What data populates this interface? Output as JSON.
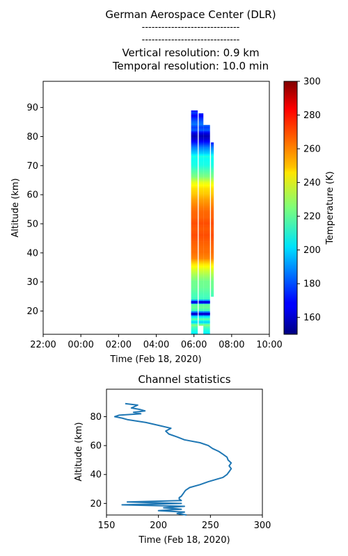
{
  "header": {
    "title": "German Aerospace Center (DLR)",
    "separator1": "------------------------------",
    "separator2": "------------------------------",
    "vertical_resolution": "Vertical resolution: 0.9 km",
    "temporal_resolution": "Temporal resolution: 10.0 min"
  },
  "chart_data": [
    {
      "type": "heatmap",
      "title": "",
      "xlabel": "Time (Feb 18, 2020)",
      "ylabel": "Altitude (km)",
      "x_tick_labels": [
        "22:00",
        "00:00",
        "02:00",
        "04:00",
        "06:00",
        "08:00",
        "10:00"
      ],
      "x_tick_hours": [
        -2,
        0,
        2,
        4,
        6,
        8,
        10
      ],
      "xlim_hours": [
        -2,
        10
      ],
      "ylim": [
        12,
        99
      ],
      "y_ticks": [
        20,
        30,
        40,
        50,
        60,
        70,
        80,
        90
      ],
      "colorbar": {
        "label": "Temperature (K)",
        "range": [
          150,
          300
        ],
        "ticks": [
          160,
          180,
          200,
          220,
          240,
          260,
          280,
          300
        ],
        "colormap": "jet"
      },
      "columns": [
        {
          "start_hour": 5.85,
          "end_hour": 6.2,
          "alt_min": 12,
          "alt_max": 89
        },
        {
          "start_hour": 6.25,
          "end_hour": 6.5,
          "alt_min": 15,
          "alt_max": 88
        },
        {
          "start_hour": 6.5,
          "end_hour": 6.85,
          "alt_min": 12,
          "alt_max": 84
        },
        {
          "start_hour": 6.9,
          "end_hour": 7.05,
          "alt_min": 25,
          "alt_max": 78
        }
      ],
      "temperature_profile": [
        {
          "alt": 12,
          "temp": 205
        },
        {
          "alt": 14,
          "temp": 215
        },
        {
          "alt": 15,
          "temp": 225
        },
        {
          "alt": 16,
          "temp": 200
        },
        {
          "alt": 17,
          "temp": 220
        },
        {
          "alt": 18,
          "temp": 200
        },
        {
          "alt": 19,
          "temp": 160
        },
        {
          "alt": 20,
          "temp": 215
        },
        {
          "alt": 21,
          "temp": 222
        },
        {
          "alt": 22,
          "temp": 220
        },
        {
          "alt": 23,
          "temp": 170
        },
        {
          "alt": 24,
          "temp": 215
        },
        {
          "alt": 26,
          "temp": 218
        },
        {
          "alt": 28,
          "temp": 222
        },
        {
          "alt": 30,
          "temp": 223
        },
        {
          "alt": 32,
          "temp": 230
        },
        {
          "alt": 34,
          "temp": 238
        },
        {
          "alt": 36,
          "temp": 248
        },
        {
          "alt": 38,
          "temp": 262
        },
        {
          "alt": 40,
          "temp": 265
        },
        {
          "alt": 42,
          "temp": 266
        },
        {
          "alt": 44,
          "temp": 268
        },
        {
          "alt": 46,
          "temp": 270
        },
        {
          "alt": 48,
          "temp": 268
        },
        {
          "alt": 50,
          "temp": 270
        },
        {
          "alt": 52,
          "temp": 267
        },
        {
          "alt": 54,
          "temp": 266
        },
        {
          "alt": 56,
          "temp": 262
        },
        {
          "alt": 58,
          "temp": 258
        },
        {
          "alt": 60,
          "temp": 252
        },
        {
          "alt": 62,
          "temp": 248
        },
        {
          "alt": 64,
          "temp": 240
        },
        {
          "alt": 66,
          "temp": 225
        },
        {
          "alt": 68,
          "temp": 218
        },
        {
          "alt": 70,
          "temp": 210
        },
        {
          "alt": 72,
          "temp": 208
        },
        {
          "alt": 73,
          "temp": 210
        },
        {
          "alt": 74,
          "temp": 200
        },
        {
          "alt": 76,
          "temp": 188
        },
        {
          "alt": 78,
          "temp": 170
        },
        {
          "alt": 79,
          "temp": 162
        },
        {
          "alt": 80,
          "temp": 158
        },
        {
          "alt": 81,
          "temp": 165
        },
        {
          "alt": 82,
          "temp": 182
        },
        {
          "alt": 83,
          "temp": 178
        },
        {
          "alt": 84,
          "temp": 186
        },
        {
          "alt": 85,
          "temp": 182
        },
        {
          "alt": 86,
          "temp": 176
        },
        {
          "alt": 87,
          "temp": 168
        },
        {
          "alt": 88,
          "temp": 178
        },
        {
          "alt": 89,
          "temp": 168
        }
      ],
      "cold_bands": [
        {
          "alt": 23,
          "temp": 165
        },
        {
          "alt": 19,
          "temp": 162
        }
      ]
    },
    {
      "type": "line",
      "title": "Channel statistics",
      "xlabel": "Time (Feb 18, 2020)",
      "ylabel": "Altitude (km)",
      "xlim": [
        150,
        300
      ],
      "ylim": [
        12,
        99
      ],
      "x_ticks": [
        150,
        200,
        250,
        300
      ],
      "y_ticks": [
        20,
        40,
        60,
        80
      ],
      "series": [
        {
          "x": [
            227,
            218,
            225,
            200,
            222,
            205,
            225,
            165,
            222,
            170,
            222,
            220,
            220,
            222,
            224,
            226,
            230,
            240,
            248,
            262,
            266,
            268,
            270,
            268,
            270,
            267,
            266,
            262,
            258,
            252,
            248,
            240,
            225,
            218,
            210,
            207,
            212,
            200,
            188,
            170,
            165,
            158,
            162,
            183,
            176,
            187,
            182,
            174,
            180,
            168
          ],
          "y": [
            12,
            13,
            14,
            15,
            16,
            17,
            18,
            19,
            20,
            21,
            22,
            23,
            24,
            25,
            27,
            29,
            31,
            33,
            35,
            38,
            40,
            42,
            44,
            46,
            48,
            50,
            52,
            54,
            56,
            58,
            60,
            62,
            64,
            66,
            68,
            70,
            72,
            74,
            76,
            78,
            79,
            80,
            81,
            82,
            83,
            84,
            85,
            86,
            88,
            89
          ],
          "color": "#1f77b4"
        }
      ]
    }
  ]
}
